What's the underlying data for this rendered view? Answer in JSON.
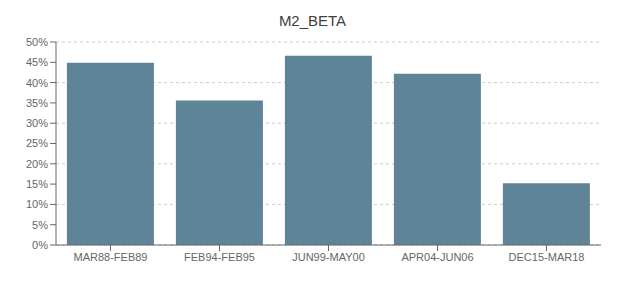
{
  "chart_data": {
    "type": "bar",
    "title": "M2_BETA",
    "categories": [
      "MAR88-FEB89",
      "FEB94-FEB95",
      "JUN99-MAY00",
      "APR04-JUN06",
      "DEC15-MAR18"
    ],
    "values": [
      0.449,
      0.356,
      0.466,
      0.422,
      0.152
    ],
    "color": "#5f8498",
    "ylim": [
      0,
      0.5
    ],
    "yticks": [
      {
        "value": 0,
        "label": "0%"
      },
      {
        "value": 0.05,
        "label": "5%"
      },
      {
        "value": 0.1,
        "label": "10%"
      },
      {
        "value": 0.15,
        "label": "15%"
      },
      {
        "value": 0.2,
        "label": "20%"
      },
      {
        "value": 0.25,
        "label": "25%"
      },
      {
        "value": 0.3,
        "label": "30%"
      },
      {
        "value": 0.35,
        "label": "35%"
      },
      {
        "value": 0.4,
        "label": "40%"
      },
      {
        "value": 0.45,
        "label": "45%"
      },
      {
        "value": 0.5,
        "label": "50%"
      }
    ],
    "grid": true
  }
}
